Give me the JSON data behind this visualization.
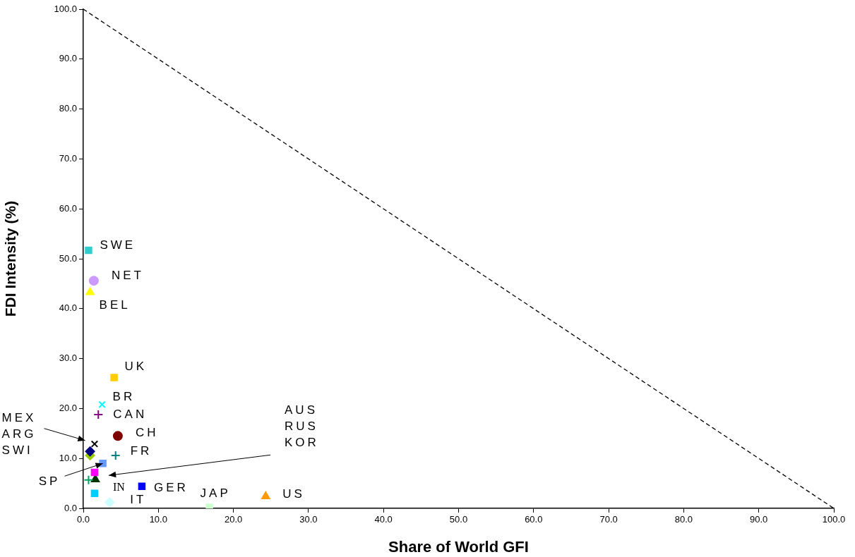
{
  "chart_data": {
    "type": "scatter",
    "xlabel": "Share of World GFI",
    "ylabel": "FDI Intensity (%)",
    "xlim": [
      0,
      100
    ],
    "ylim": [
      0,
      100
    ],
    "xticks": [
      {
        "value": 0,
        "label": "0.0"
      },
      {
        "value": 10,
        "label": "10.0"
      },
      {
        "value": 20,
        "label": "20.0"
      },
      {
        "value": 30,
        "label": "30.0"
      },
      {
        "value": 40,
        "label": "40.0"
      },
      {
        "value": 50,
        "label": "50.0"
      },
      {
        "value": 60,
        "label": "60.0"
      },
      {
        "value": 70,
        "label": "70.0"
      },
      {
        "value": 80,
        "label": "80.0"
      },
      {
        "value": 90,
        "label": "90.0"
      },
      {
        "value": 100,
        "label": "100.0"
      }
    ],
    "yticks": [
      {
        "value": 0,
        "label": "0.0"
      },
      {
        "value": 10,
        "label": "10.0"
      },
      {
        "value": 20,
        "label": "20.0"
      },
      {
        "value": 30,
        "label": "30.0"
      },
      {
        "value": 40,
        "label": "40.0"
      },
      {
        "value": 50,
        "label": "50.0"
      },
      {
        "value": 60,
        "label": "60.0"
      },
      {
        "value": 70,
        "label": "70.0"
      },
      {
        "value": 80,
        "label": "80.0"
      },
      {
        "value": 90,
        "label": "90.0"
      },
      {
        "value": 100,
        "label": "100.0"
      }
    ],
    "grid": false,
    "legend": false,
    "series": [
      {
        "color": "#33cccc",
        "marker": "square",
        "x": [
          0.7
        ],
        "values": [
          51.7
        ]
      },
      {
        "color": "#cc99ff",
        "marker": "circle",
        "x": [
          1.4
        ],
        "values": [
          45.6
        ]
      },
      {
        "color": "#ffff00",
        "marker": "triangle",
        "x": [
          0.9
        ],
        "values": [
          43.3
        ]
      },
      {
        "color": "#ffcc00",
        "marker": "square",
        "x": [
          4.1
        ],
        "values": [
          26.2
        ]
      },
      {
        "color": "#00ffff",
        "marker": "x",
        "x": [
          2.5
        ],
        "values": [
          20.8
        ]
      },
      {
        "color": "#800080",
        "marker": "cross",
        "x": [
          2.0
        ],
        "values": [
          18.8
        ]
      },
      {
        "color": "#800000",
        "marker": "circle",
        "x": [
          4.6
        ],
        "values": [
          14.5
        ]
      },
      {
        "color": "#000000",
        "marker": "x",
        "x": [
          1.5
        ],
        "values": [
          12.9
        ]
      },
      {
        "color": "#000080",
        "marker": "diamond",
        "x": [
          0.9
        ],
        "values": [
          11.4
        ]
      },
      {
        "color": "#99cc00",
        "marker": "diamond",
        "x": [
          0.9
        ],
        "values": [
          10.6
        ]
      },
      {
        "color": "#008080",
        "marker": "cross",
        "x": [
          4.3
        ],
        "values": [
          10.6
        ]
      },
      {
        "color": "#6699ff",
        "marker": "square",
        "x": [
          2.6
        ],
        "values": [
          9.0
        ]
      },
      {
        "color": "#ff00ff",
        "marker": "square",
        "x": [
          1.5
        ],
        "values": [
          7.2
        ]
      },
      {
        "color": "#00a060",
        "marker": "cross",
        "x": [
          0.7
        ],
        "values": [
          5.7
        ]
      },
      {
        "color": "#003300",
        "marker": "triangle",
        "x": [
          1.6
        ],
        "values": [
          5.8
        ]
      },
      {
        "color": "#00ccff",
        "marker": "square",
        "x": [
          1.5
        ],
        "values": [
          3.0
        ]
      },
      {
        "color": "#0000ff",
        "marker": "square",
        "x": [
          7.8
        ],
        "values": [
          4.4
        ]
      },
      {
        "color": "#ccffff",
        "marker": "diamond",
        "x": [
          3.5
        ],
        "values": [
          1.2
        ]
      },
      {
        "color": "#ccffcc",
        "marker": "square",
        "x": [
          16.8
        ],
        "values": [
          0.2
        ]
      },
      {
        "color": "#ff9900",
        "marker": "triangle",
        "x": [
          24.3
        ],
        "values": [
          2.4
        ]
      },
      {
        "type": "line",
        "color": "#000000",
        "marker": "none",
        "line_style": "dashed",
        "x": [
          0,
          100
        ],
        "values": [
          100,
          0
        ]
      }
    ],
    "annotations": [
      {
        "text": "SWE",
        "x": 0.7,
        "y": 51.7
      },
      {
        "text": "NET",
        "x": 1.4,
        "y": 45.6
      },
      {
        "text": "BEL",
        "x": 0.9,
        "y": 43.3
      },
      {
        "text": "UK",
        "x": 4.1,
        "y": 26.2
      },
      {
        "text": "BR",
        "x": 2.5,
        "y": 20.8
      },
      {
        "text": "CAN",
        "x": 2.0,
        "y": 18.8
      },
      {
        "text": "CH",
        "x": 4.6,
        "y": 14.5
      },
      {
        "text": "FR",
        "x": 4.3,
        "y": 10.6
      },
      {
        "text": "GER",
        "x": 7.8,
        "y": 4.4
      },
      {
        "text": "IN",
        "x": 1.5,
        "y": 3.0
      },
      {
        "text": "IT",
        "x": 3.5,
        "y": 1.2
      },
      {
        "text": "JAP",
        "x": 16.8,
        "y": 0.2
      },
      {
        "text": "US",
        "x": 24.3,
        "y": 2.4
      },
      "MEX\nARG\nSWI",
      {
        "text": "SP",
        "x": 2.6,
        "y": 9.0
      },
      "AUS\nRUS\nKOR"
    ]
  }
}
